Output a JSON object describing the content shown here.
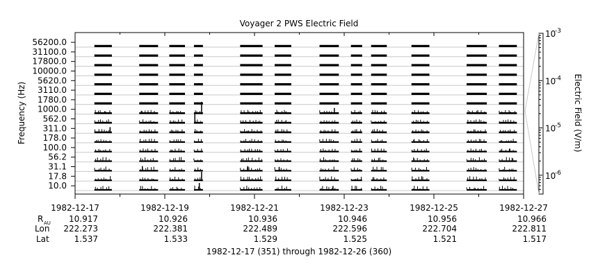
{
  "chart_data": {
    "type": "spectrogram-strip",
    "title": "Voyager 2 PWS Electric Field",
    "ylabel": "Frequency (Hz)",
    "colorbar_label": "Electric Field (V/m)",
    "footer": "1982-12-17 (351) through 1982-12-26 (360)",
    "y_channels": [
      "10.0",
      "17.8",
      "31.1",
      "56.2",
      "100.0",
      "178.0",
      "311.0",
      "562.0",
      "1000.0",
      "1780.0",
      "3110.0",
      "5620.0",
      "10000.0",
      "17800.0",
      "31100.0",
      "56200.0"
    ],
    "x_range_days": [
      0,
      10
    ],
    "x_ticks": [
      {
        "date": "1982-12-17",
        "day": 0,
        "r_au": "10.917",
        "lon": "222.273",
        "lat": "1.537"
      },
      {
        "date": "1982-12-19",
        "day": 2,
        "r_au": "10.926",
        "lon": "222.381",
        "lat": "1.533"
      },
      {
        "date": "1982-12-21",
        "day": 4,
        "r_au": "10.936",
        "lon": "222.489",
        "lat": "1.529"
      },
      {
        "date": "1982-12-23",
        "day": 6,
        "r_au": "10.946",
        "lon": "222.596",
        "lat": "1.525"
      },
      {
        "date": "1982-12-25",
        "day": 8,
        "r_au": "10.956",
        "lon": "222.704",
        "lat": "1.521"
      },
      {
        "date": "1982-12-27",
        "day": 10,
        "r_au": "10.966",
        "lon": "222.811",
        "lat": "1.517"
      }
    ],
    "minor_ticks_days": [
      1,
      3,
      5,
      7,
      9
    ],
    "ephemeris_labels": {
      "r_main": "R",
      "r_sub": "AU",
      "lon": "Lon",
      "lat": "Lat"
    },
    "data_segments_days": [
      [
        0.43,
        0.82
      ],
      [
        1.43,
        1.85
      ],
      [
        2.1,
        2.45
      ],
      [
        2.65,
        2.85
      ],
      [
        3.68,
        4.18
      ],
      [
        4.45,
        4.82
      ],
      [
        5.45,
        5.88
      ],
      [
        6.15,
        6.4
      ],
      [
        6.6,
        6.95
      ],
      [
        7.5,
        7.9
      ],
      [
        8.73,
        9.18
      ],
      [
        9.45,
        9.85
      ]
    ],
    "spikes": [
      {
        "day": 2.67,
        "channel": 7,
        "height": 0.65
      },
      {
        "day": 2.82,
        "channel": 8,
        "height": 0.8
      },
      {
        "day": 2.82,
        "channel": 1,
        "height": 0.6
      },
      {
        "day": 2.77,
        "channel": 0,
        "height": 0.5
      },
      {
        "day": 0.78,
        "channel": 6,
        "height": 0.4
      },
      {
        "day": 1.5,
        "channel": 2,
        "height": 0.35
      },
      {
        "day": 5.78,
        "channel": 8,
        "height": 0.4
      },
      {
        "day": 3.85,
        "channel": 2,
        "height": 0.35
      },
      {
        "day": 4.55,
        "channel": 2,
        "height": 0.3
      },
      {
        "day": 5.75,
        "channel": 0,
        "height": 0.3
      }
    ],
    "colorbar": {
      "scale": "log",
      "range": [
        4e-07,
        0.001
      ],
      "ticks": [
        {
          "mantissa": "10",
          "exp": "-3",
          "value": 0.001
        },
        {
          "mantissa": "10",
          "exp": "-4",
          "value": 0.0001
        },
        {
          "mantissa": "10",
          "exp": "-5",
          "value": 1e-05
        },
        {
          "mantissa": "10",
          "exp": "-6",
          "value": 1e-06
        }
      ]
    },
    "colors": {
      "data": "#000000",
      "grid": "#c8c8c8",
      "axis": "#000000",
      "colorbar_line": "#c8c8c8"
    }
  }
}
